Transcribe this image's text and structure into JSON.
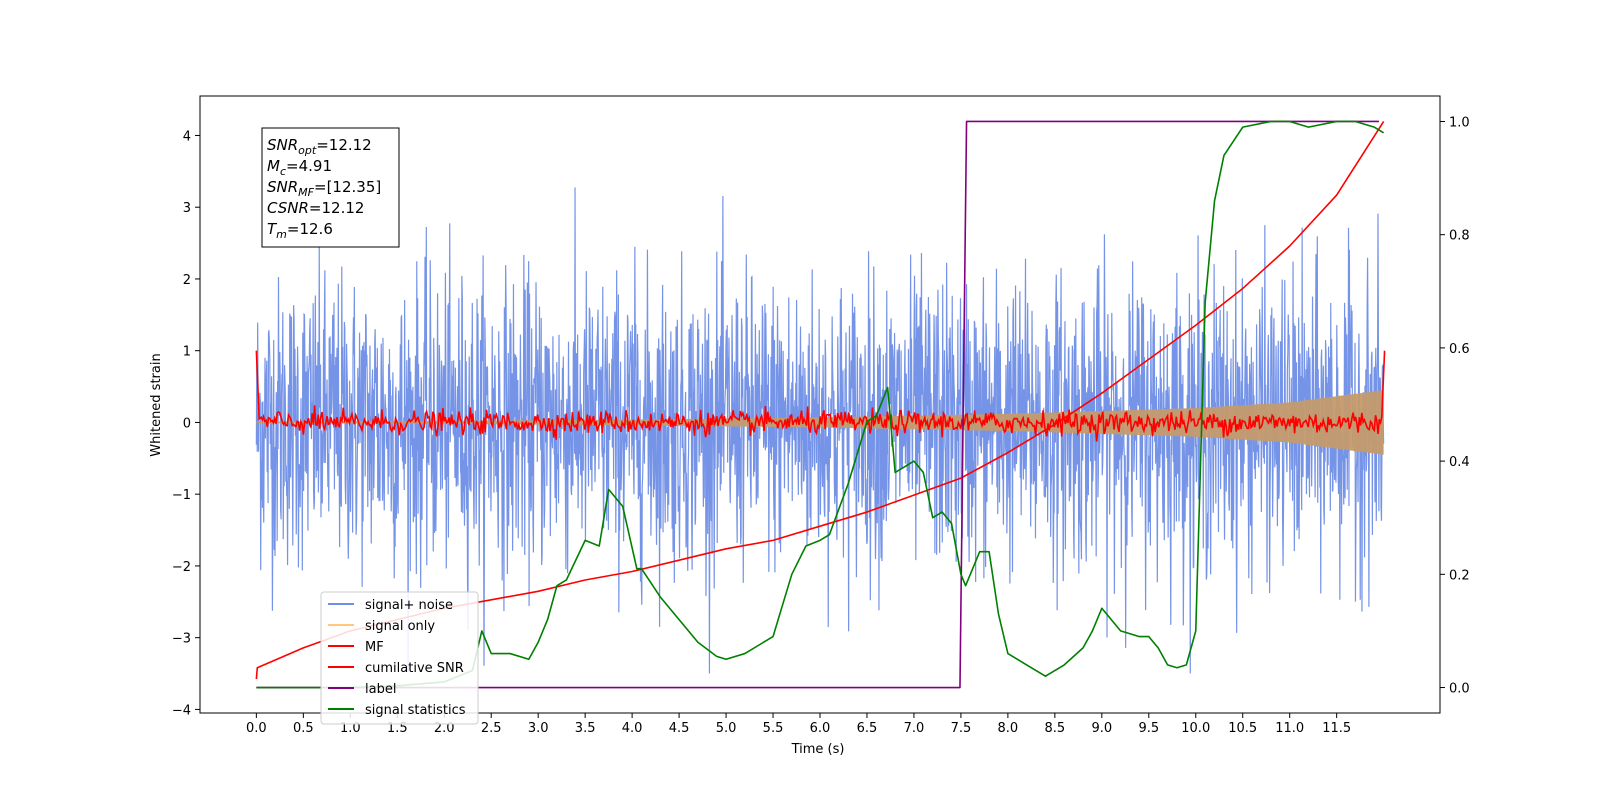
{
  "chart_data": {
    "type": "line",
    "xlabel": "Time (s)",
    "ylabel": "Whitened strain",
    "xlim": [
      -0.6,
      12.6
    ],
    "ylim": [
      -4.05,
      4.55
    ],
    "y2lim": [
      -0.045,
      1.045
    ],
    "grid": false,
    "legend_position": "lower-left",
    "x_ticks": [
      "0.0",
      "0.5",
      "1.0",
      "1.5",
      "2.0",
      "2.5",
      "3.0",
      "3.5",
      "4.0",
      "4.5",
      "5.0",
      "5.5",
      "6.0",
      "6.5",
      "7.0",
      "7.5",
      "8.0",
      "8.5",
      "9.0",
      "9.5",
      "10.0",
      "10.5",
      "11.0",
      "11.5"
    ],
    "y_ticks": [
      "4",
      "3",
      "2",
      "1",
      "0",
      "−1",
      "−2",
      "−3",
      "−4"
    ],
    "y2_ticks": [
      "1.0",
      "0.8",
      "0.6",
      "0.4",
      "0.2",
      "0.0"
    ],
    "info_box": [
      {
        "base": "SNR",
        "sub": "opt",
        "value": "=12.12"
      },
      {
        "base": "M",
        "sub": "c",
        "value": "=4.91"
      },
      {
        "base": "SNR",
        "sub": "MF",
        "value": "=[12.35]"
      },
      {
        "base": "CSNR",
        "sub": "",
        "value": "=12.12"
      },
      {
        "base": "T",
        "sub": "m",
        "value": "=12.6"
      }
    ],
    "series": [
      {
        "name": "signal+ noise",
        "axis": "left",
        "color": "#6f8ee6",
        "description": "noise band approx +/-1.1 sigma, spikes to ~3.4",
        "t_start": 0.0,
        "t_end": 12.0
      },
      {
        "name": "signal only",
        "axis": "left",
        "color": "#ffc87a",
        "envelope": {
          "x": [
            0.0,
            2.0,
            4.0,
            6.0,
            8.0,
            10.0,
            11.0,
            12.0
          ],
          "amp": [
            0.01,
            0.02,
            0.04,
            0.07,
            0.12,
            0.2,
            0.28,
            0.45
          ]
        }
      },
      {
        "name": "MF",
        "axis": "left",
        "color": "#ff0000",
        "x": [
          0.0,
          0.03,
          0.1,
          12.0,
          12.01
        ],
        "y": [
          1.0,
          0.05,
          0.0,
          0.0,
          1.0
        ],
        "jitter": 0.08
      },
      {
        "name": "cumilative SNR",
        "axis": "right",
        "color": "#ff0000",
        "x": [
          0.0,
          0.01,
          0.5,
          1.0,
          1.5,
          2.0,
          2.5,
          3.0,
          3.5,
          4.0,
          4.5,
          5.0,
          5.5,
          6.0,
          6.5,
          7.0,
          7.5,
          8.0,
          8.5,
          9.0,
          9.5,
          10.0,
          10.5,
          11.0,
          11.5,
          12.0
        ],
        "y": [
          0.015,
          0.035,
          0.07,
          0.1,
          0.12,
          0.14,
          0.155,
          0.17,
          0.19,
          0.205,
          0.225,
          0.245,
          0.26,
          0.285,
          0.31,
          0.34,
          0.37,
          0.415,
          0.465,
          0.52,
          0.58,
          0.64,
          0.705,
          0.78,
          0.87,
          1.0
        ]
      },
      {
        "name": "label",
        "axis": "right",
        "color": "#800080",
        "x": [
          0.0,
          7.49,
          7.56,
          11.95
        ],
        "y": [
          0.0,
          0.0,
          1.0,
          1.0
        ]
      },
      {
        "name": "signal statistics",
        "axis": "right",
        "color": "#008000",
        "x": [
          0.0,
          0.5,
          1.0,
          1.5,
          2.0,
          2.3,
          2.4,
          2.5,
          2.7,
          2.9,
          3.0,
          3.1,
          3.2,
          3.3,
          3.5,
          3.65,
          3.75,
          3.9,
          4.05,
          4.1,
          4.3,
          4.5,
          4.7,
          4.9,
          5.0,
          5.2,
          5.4,
          5.5,
          5.7,
          5.85,
          6.0,
          6.1,
          6.3,
          6.5,
          6.6,
          6.72,
          6.8,
          6.9,
          7.0,
          7.1,
          7.2,
          7.3,
          7.4,
          7.5,
          7.55,
          7.7,
          7.8,
          7.9,
          8.0,
          8.2,
          8.4,
          8.6,
          8.8,
          8.9,
          9.0,
          9.2,
          9.4,
          9.5,
          9.6,
          9.7,
          9.8,
          9.9,
          10.0,
          10.1,
          10.2,
          10.3,
          10.5,
          10.8,
          11.0,
          11.2,
          11.5,
          11.7,
          11.9,
          12.0
        ],
        "y": [
          0.0,
          0.0,
          0.0,
          0.003,
          0.01,
          0.03,
          0.1,
          0.06,
          0.06,
          0.05,
          0.08,
          0.12,
          0.18,
          0.19,
          0.26,
          0.25,
          0.35,
          0.32,
          0.21,
          0.21,
          0.16,
          0.12,
          0.08,
          0.055,
          0.05,
          0.06,
          0.08,
          0.09,
          0.2,
          0.25,
          0.26,
          0.27,
          0.36,
          0.47,
          0.48,
          0.53,
          0.38,
          0.39,
          0.4,
          0.38,
          0.3,
          0.31,
          0.29,
          0.2,
          0.18,
          0.24,
          0.24,
          0.13,
          0.06,
          0.04,
          0.02,
          0.04,
          0.07,
          0.1,
          0.14,
          0.1,
          0.09,
          0.09,
          0.07,
          0.04,
          0.035,
          0.04,
          0.1,
          0.68,
          0.86,
          0.94,
          0.99,
          1.0,
          1.0,
          0.99,
          1.0,
          1.0,
          0.99,
          0.98
        ]
      }
    ]
  }
}
